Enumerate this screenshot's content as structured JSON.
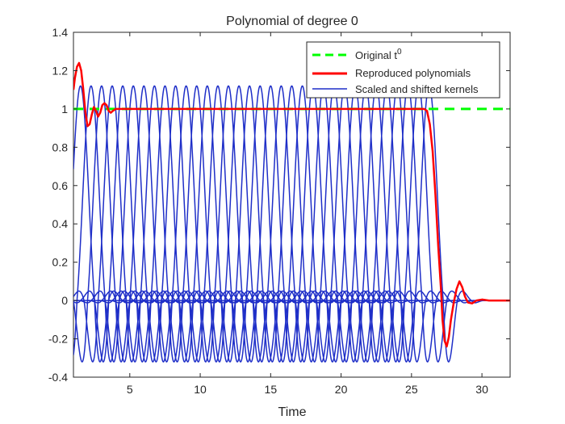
{
  "chart_data": {
    "type": "line",
    "title": "Polynomial of degree 0",
    "xlabel": "Time",
    "ylabel": "",
    "xlim": [
      1,
      32
    ],
    "ylim": [
      -0.4,
      1.4
    ],
    "x_ticks": [
      5,
      10,
      15,
      20,
      25,
      30
    ],
    "y_ticks": [
      -0.4,
      -0.2,
      0,
      0.2,
      0.4,
      0.6,
      0.8,
      1,
      1.2,
      1.4
    ],
    "x_tick_labels": [
      "5",
      "10",
      "15",
      "20",
      "25",
      "30"
    ],
    "y_tick_labels": [
      "-0.4",
      "-0.2",
      "0",
      "0.2",
      "0.4",
      "0.6",
      "0.8",
      "1",
      "1.2",
      "1.4"
    ],
    "grid": false,
    "legend_position": "top-right",
    "kernel_centers": [
      1.5,
      2.25,
      3,
      3.75,
      4.5,
      5.25,
      6,
      6.75,
      7.5,
      8.25,
      9,
      9.75,
      10.5,
      11.25,
      12,
      12.75,
      13.5,
      14.25,
      15,
      15.75,
      16.5,
      17.25,
      18,
      18.75,
      19.5,
      20.25,
      21,
      21.75,
      22.5,
      23.25,
      24,
      24.75,
      25.5,
      26.25
    ],
    "kernel_peak": 1.12,
    "kernel_min": -0.32,
    "series": [
      {
        "name": "Original t^0",
        "legend_base": "Original t",
        "legend_sup": "0",
        "color": "#00ff00",
        "style": "dashed",
        "x": [
          1,
          32
        ],
        "y": [
          1,
          1
        ]
      },
      {
        "name": "Reproduced polynomials",
        "color": "#ff0000",
        "style": "solid",
        "x": [
          1.0,
          1.1,
          1.25,
          1.4,
          1.55,
          1.7,
          1.85,
          2.0,
          2.15,
          2.3,
          2.45,
          2.6,
          2.75,
          2.9,
          3.05,
          3.2,
          3.35,
          3.5,
          3.65,
          3.8,
          4.0,
          4.5,
          5,
          10,
          15,
          20,
          25,
          25.9,
          26.1,
          26.3,
          26.5,
          26.7,
          26.9,
          27.1,
          27.2,
          27.35,
          27.5,
          27.65,
          27.8,
          28.0,
          28.2,
          28.4,
          28.6,
          28.8,
          29.0,
          29.3,
          29.6,
          30.0,
          30.5,
          31,
          32
        ],
        "y": [
          1.1,
          1.16,
          1.22,
          1.24,
          1.2,
          1.1,
          0.98,
          0.91,
          0.92,
          0.97,
          1.01,
          0.99,
          0.96,
          0.98,
          1.02,
          1.03,
          1.02,
          0.99,
          0.98,
          0.99,
          1.0,
          1.0,
          1.0,
          1.0,
          1.0,
          1.0,
          1.0,
          1.0,
          0.99,
          0.92,
          0.78,
          0.55,
          0.28,
          0.05,
          -0.1,
          -0.21,
          -0.24,
          -0.19,
          -0.1,
          -0.01,
          0.06,
          0.1,
          0.07,
          0.02,
          -0.01,
          -0.015,
          0.0,
          0.005,
          0.0,
          0.0,
          0.0
        ]
      },
      {
        "name": "Scaled and shifted kernels",
        "color": "#1f2fc8",
        "style": "solid"
      }
    ]
  }
}
